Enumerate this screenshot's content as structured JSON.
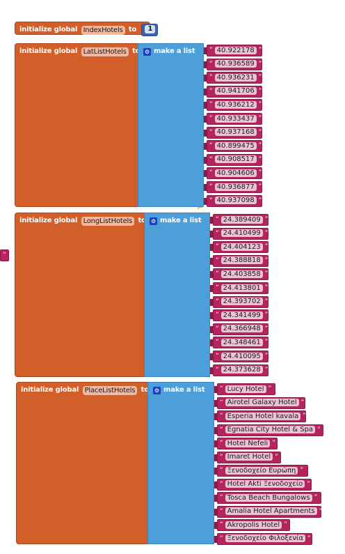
{
  "index_block": {
    "prefix": "initialize global",
    "var_name": "IndexHotels",
    "to": "to",
    "value": "1"
  },
  "lat_block": {
    "prefix": "initialize global",
    "var_name": "LatListHotels",
    "to": "to",
    "make_list": "make a list",
    "values": [
      "40.922178",
      "40.936589",
      "40.936231",
      "40.941706",
      "40.936212",
      "40.933437",
      "40.937168",
      "40.899475",
      "40.908517",
      "40.904606",
      "40.936877",
      "40.937098"
    ]
  },
  "long_block": {
    "prefix": "initialize global",
    "var_name": "LongListHotels",
    "to": "to",
    "make_list": "make a list",
    "values": [
      "24.389409",
      "24.410499",
      "24.404123",
      "24.388818",
      "24.403858",
      "24.413801",
      "24.393702",
      "24.341499",
      "24.366948",
      "24.348461",
      "24.410095",
      "24.373628"
    ]
  },
  "place_block": {
    "prefix": "initialize global",
    "var_name": "PlaceListHotels",
    "to": "to",
    "make_list": "make a list",
    "values": [
      "Lucy Hotel",
      "Airotel Galaxy Hotel",
      "Esperia Hotel kavala",
      "Egnatia City Hotel & Spa",
      "Hotel Nefeli",
      "Imaret Hotel",
      "Ξενοδοχείο Ευρώπη",
      "Hotel Akti Ξενοδοχείο",
      "Tosca Beach Bungalows",
      "Amalia Hotel Apartments",
      "Akropolis Hotel",
      "Ξενοδοχείο Φιλοξενία"
    ]
  },
  "stray_block": {
    "quote": "\""
  },
  "colors": {
    "variable_orange": "#d25f2a",
    "list_blue": "#4c9fd9",
    "text_magenta": "#b5245f",
    "math_blue": "#3f5fa8"
  }
}
